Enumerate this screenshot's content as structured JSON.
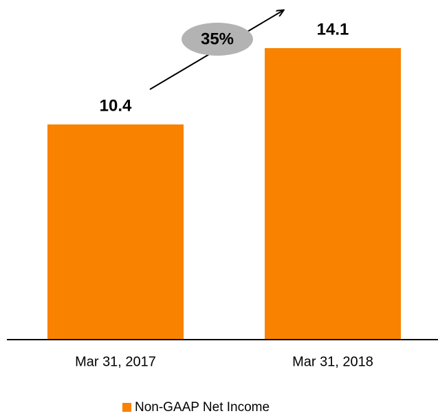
{
  "chart_data": {
    "type": "bar",
    "categories": [
      "Mar 31, 2017",
      "Mar 31, 2018"
    ],
    "series": [
      {
        "name": "Non-GAAP Net Income",
        "color": "#f98200",
        "values": [
          10.4,
          14.1
        ]
      }
    ],
    "annotation": "35%"
  }
}
